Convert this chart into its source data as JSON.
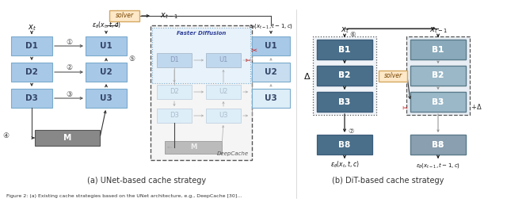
{
  "fig_width": 6.4,
  "fig_height": 2.6,
  "dpi": 100,
  "bg_color": "#ffffff",
  "blue_block": "#a8c8e8",
  "blue_block_light": "#c8ddf0",
  "blue_block_lighter": "#ddeef8",
  "gray_block_dark": "#888888",
  "gray_block_light": "#bbbbbb",
  "solver_color": "#fde8c8",
  "solver_border": "#d4a860",
  "dit_dark": "#6a8faa",
  "dit_darker": "#4a6f8a",
  "dit_right1": "#8aaabb",
  "dit_right2": "#aabccc",
  "caption_left": "(a) UNet-based cache strategy",
  "caption_right": "(b) DiT-based cache strategy",
  "fig_caption": "Figure 2: (a) Existing cache strategies based on the UNet architecture, e.g., DeepCache [30]..."
}
